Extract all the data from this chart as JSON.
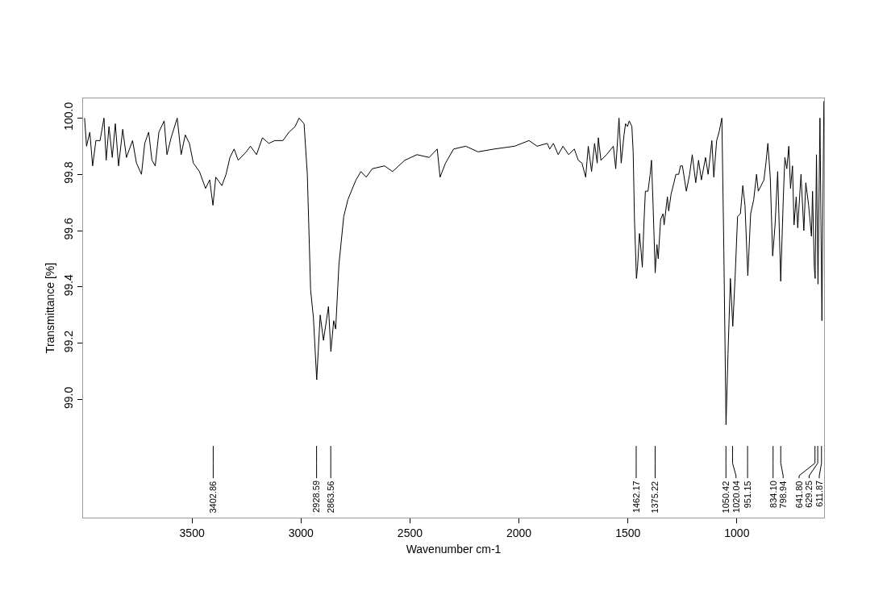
{
  "chart_data": {
    "type": "line",
    "xlabel": "Wavenumber cm-1",
    "ylabel": "Transmittance [%]",
    "xlim": [
      4000,
      600
    ],
    "xticks": [
      3500,
      3000,
      2500,
      2000,
      1500,
      1000
    ],
    "ylim": [
      98.58,
      100.07
    ],
    "yticks": [
      {
        "value": 99,
        "label": "99.0"
      },
      {
        "value": 99.2,
        "label": "99.2"
      },
      {
        "value": 99.4,
        "label": "99.4"
      },
      {
        "value": 99.6,
        "label": "99.6"
      },
      {
        "value": 99.8,
        "label": "99.8"
      },
      {
        "value": 100,
        "label": "100.0"
      }
    ],
    "marker": "none",
    "line_style": "solid",
    "annotations": [
      {
        "text": "3402.86",
        "x": 3402.86
      },
      {
        "text": "2928.59",
        "x": 2928.59
      },
      {
        "text": "2863.56",
        "x": 2863.56
      },
      {
        "text": "1462.17",
        "x": 1462.17
      },
      {
        "text": "1375.22",
        "x": 1375.22
      },
      {
        "text": "1050.42",
        "x": 1050.42
      },
      {
        "text": "1020.04",
        "x": 1020.04
      },
      {
        "text": "951.15",
        "x": 951.15
      },
      {
        "text": "834.10",
        "x": 834.1
      },
      {
        "text": "798.94",
        "x": 798.94
      },
      {
        "text": "641.80",
        "x": 641.8
      },
      {
        "text": "629.25",
        "x": 629.25
      },
      {
        "text": "611.87",
        "x": 611.87
      }
    ],
    "series": [
      {
        "color": "#000000",
        "x": [
          3993,
          3984,
          3969,
          3956,
          3941,
          3922,
          3904,
          3894,
          3881,
          3866,
          3852,
          3837,
          3818,
          3801,
          3773,
          3755,
          3732,
          3717,
          3699,
          3684,
          3669,
          3652,
          3628,
          3615,
          3596,
          3568,
          3550,
          3531,
          3512,
          3494,
          3466,
          3438,
          3419,
          3404,
          3391,
          3363,
          3344,
          3326,
          3307,
          3288,
          3251,
          3232,
          3204,
          3177,
          3148,
          3120,
          3083,
          3055,
          3027,
          3009,
          2986,
          2971,
          2956,
          2943,
          2928,
          2912,
          2897,
          2874,
          2863,
          2850,
          2841,
          2826,
          2804,
          2785,
          2748,
          2725,
          2701,
          2673,
          2617,
          2580,
          2524,
          2468,
          2412,
          2375,
          2362,
          2337,
          2300,
          2244,
          2188,
          2113,
          2020,
          1954,
          1917,
          1870,
          1859,
          1842,
          1820,
          1798,
          1772,
          1746,
          1728,
          1711,
          1694,
          1682,
          1667,
          1653,
          1641,
          1636,
          1624,
          1598,
          1567,
          1556,
          1541,
          1531,
          1518,
          1511,
          1502,
          1494,
          1482,
          1476,
          1470,
          1461,
          1456,
          1447,
          1441,
          1434,
          1427,
          1420,
          1408,
          1398,
          1392,
          1385,
          1375,
          1367,
          1361,
          1350,
          1339,
          1334,
          1319,
          1313,
          1302,
          1289,
          1280,
          1267,
          1259,
          1250,
          1232,
          1217,
          1205,
          1189,
          1176,
          1163,
          1144,
          1132,
          1115,
          1106,
          1093,
          1082,
          1069,
          1060,
          1050,
          1041,
          1030,
          1019,
          1008,
          997,
          984,
          973,
          963,
          950,
          937,
          923,
          910,
          902,
          889,
          876,
          867,
          858,
          847,
          836,
          825,
          813,
          799,
          787,
          780,
          771,
          762,
          754,
          745,
          738,
          728,
          721,
          706,
          693,
          684,
          671,
          658,
          653,
          645,
          641,
          635,
          628,
          619,
          610,
          601
        ],
        "values": [
          100.0,
          99.9,
          99.95,
          99.83,
          99.92,
          99.92,
          100.0,
          99.85,
          99.97,
          99.86,
          99.98,
          99.83,
          99.96,
          99.86,
          99.92,
          99.84,
          99.8,
          99.91,
          99.95,
          99.85,
          99.83,
          99.95,
          99.99,
          99.87,
          99.93,
          100.0,
          99.87,
          99.94,
          99.91,
          99.84,
          99.81,
          99.75,
          99.78,
          99.69,
          99.79,
          99.76,
          99.8,
          99.86,
          99.89,
          99.85,
          99.88,
          99.9,
          99.87,
          99.93,
          99.91,
          99.92,
          99.92,
          99.95,
          99.97,
          100.0,
          99.98,
          99.8,
          99.39,
          99.29,
          99.07,
          99.3,
          99.21,
          99.33,
          99.17,
          99.28,
          99.25,
          99.48,
          99.65,
          99.71,
          99.78,
          99.81,
          99.79,
          99.82,
          99.83,
          99.81,
          99.85,
          99.87,
          99.86,
          99.89,
          99.79,
          99.84,
          99.89,
          99.9,
          99.88,
          99.89,
          99.9,
          99.92,
          99.9,
          99.91,
          99.89,
          99.91,
          99.87,
          99.9,
          99.87,
          99.89,
          99.85,
          99.84,
          99.79,
          99.9,
          99.81,
          99.91,
          99.84,
          99.93,
          99.85,
          99.87,
          99.9,
          99.82,
          100.0,
          99.84,
          99.94,
          99.98,
          99.97,
          99.99,
          99.97,
          99.88,
          99.64,
          99.43,
          99.47,
          99.59,
          99.54,
          99.47,
          99.62,
          99.74,
          99.74,
          99.8,
          99.85,
          99.7,
          99.45,
          99.55,
          99.5,
          99.64,
          99.66,
          99.62,
          99.72,
          99.67,
          99.73,
          99.77,
          99.8,
          99.8,
          99.83,
          99.83,
          99.74,
          99.8,
          99.87,
          99.77,
          99.85,
          99.78,
          99.86,
          99.8,
          99.92,
          99.79,
          99.92,
          99.95,
          100.0,
          99.53,
          98.91,
          99.16,
          99.43,
          99.26,
          99.44,
          99.65,
          99.66,
          99.76,
          99.69,
          99.44,
          99.66,
          99.71,
          99.8,
          99.74,
          99.76,
          99.78,
          99.84,
          99.91,
          99.79,
          99.51,
          99.62,
          99.81,
          99.42,
          99.72,
          99.86,
          99.82,
          99.9,
          99.75,
          99.83,
          99.62,
          99.72,
          99.61,
          99.8,
          99.6,
          99.77,
          99.69,
          99.58,
          99.74,
          99.47,
          99.43,
          99.87,
          99.41,
          100.0,
          99.28,
          100.06
        ]
      }
    ]
  }
}
